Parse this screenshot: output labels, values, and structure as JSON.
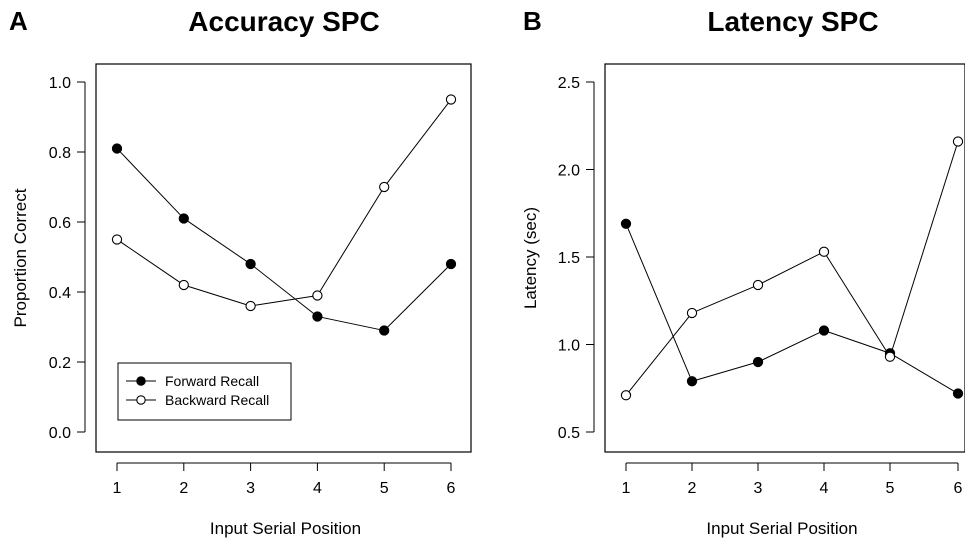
{
  "chart_data": [
    {
      "panel_label": "A",
      "type": "line",
      "title": "Accuracy SPC",
      "xlabel": "Input Serial Position",
      "ylabel": "Proportion Correct",
      "x": [
        1,
        2,
        3,
        4,
        5,
        6
      ],
      "xticks": [
        "1",
        "2",
        "3",
        "4",
        "5",
        "6"
      ],
      "ylim": [
        0.0,
        1.0
      ],
      "yticks": [
        "0.0",
        "0.2",
        "0.4",
        "0.6",
        "0.8",
        "1.0"
      ],
      "series": [
        {
          "name": "Forward Recall",
          "marker": "filled-circle",
          "values": [
            0.81,
            0.61,
            0.48,
            0.33,
            0.29,
            0.48
          ]
        },
        {
          "name": "Backward Recall",
          "marker": "open-circle",
          "values": [
            0.55,
            0.42,
            0.36,
            0.39,
            0.7,
            0.95
          ]
        }
      ],
      "legend": "bottom-left",
      "grid": false
    },
    {
      "panel_label": "B",
      "type": "line",
      "title": "Latency SPC",
      "xlabel": "Input Serial Position",
      "ylabel": "Latency (sec)",
      "x": [
        1,
        2,
        3,
        4,
        5,
        6
      ],
      "xticks": [
        "1",
        "2",
        "3",
        "4",
        "5",
        "6"
      ],
      "ylim": [
        0.5,
        2.5
      ],
      "yticks": [
        "0.5",
        "1.0",
        "1.5",
        "2.0",
        "2.5"
      ],
      "series": [
        {
          "name": "Forward Recall",
          "marker": "filled-circle",
          "values": [
            1.69,
            0.79,
            0.9,
            1.08,
            0.95,
            0.72
          ]
        },
        {
          "name": "Backward Recall",
          "marker": "open-circle",
          "values": [
            0.71,
            1.18,
            1.34,
            1.53,
            0.93,
            2.16
          ]
        }
      ],
      "legend": "none",
      "grid": false
    }
  ]
}
